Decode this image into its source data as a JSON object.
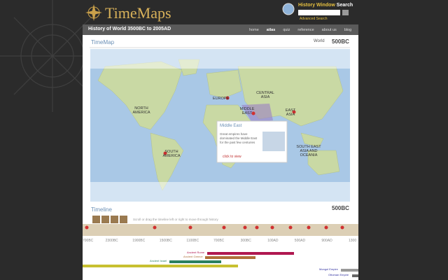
{
  "header": {
    "logo": "TimeMaps",
    "search_label": "History Window",
    "search_word": "Search",
    "advanced_search": "Advanced Search"
  },
  "nav": {
    "title": "History of World 3500BC to 2005AD",
    "links": [
      "home",
      "atlas",
      "quiz",
      "reference",
      "about us",
      "blog"
    ]
  },
  "timemap": {
    "title": "TimeMap",
    "region": "World",
    "date": "500BC",
    "labels": [
      "NORTH AMERICA",
      "EUROPE",
      "CENTRAL ASIA",
      "MIDDLE EAST",
      "EAST ASIA",
      "SOUTH AMERICA",
      "SOUTH EAST ASIA AND OCEANIA"
    ],
    "popup": {
      "title": "Middle East",
      "text": "Great empires have dominated the Middle East for the past few centuries",
      "link": "click to view"
    }
  },
  "timeline": {
    "title": "Timeline",
    "date": "500BC",
    "hint": "Scroll or drag the timeline left or right to move through history",
    "ticks": [
      "700BC",
      "2300BC",
      "1900BC",
      "1500BC",
      "1100BC",
      "700BC",
      "300BC",
      "100AD",
      "500AD",
      "900AD",
      "1300"
    ],
    "bars": [
      "Ancient Rome",
      "Ancient Greece",
      "Ancient Israel",
      "Mongol Empire",
      "Ottoman Empire"
    ]
  }
}
